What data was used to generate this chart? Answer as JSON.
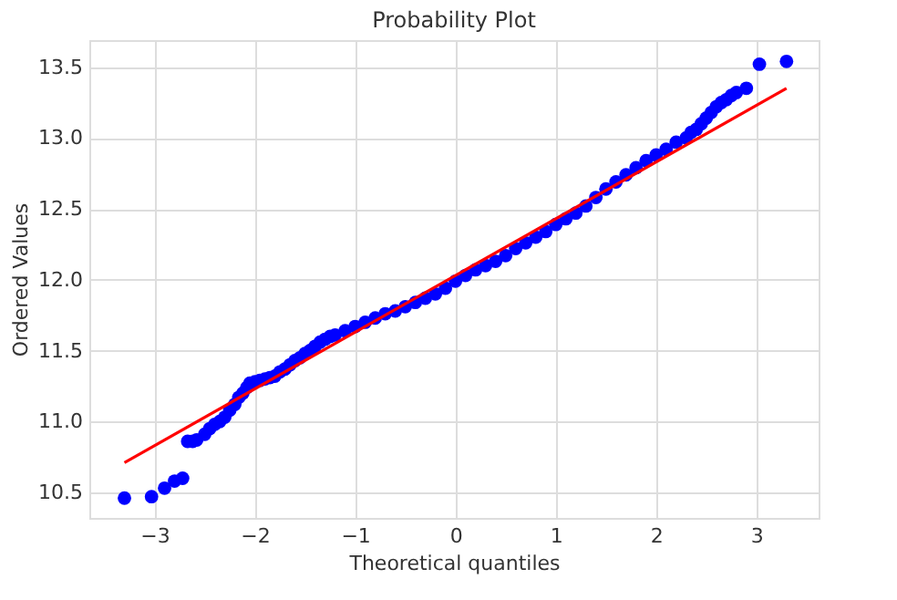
{
  "chart_data": {
    "type": "scatter",
    "title": "Probability Plot",
    "xlabel": "Theoretical quantiles",
    "ylabel": "Ordered Values",
    "xlim": [
      -3.65,
      3.62
    ],
    "ylim": [
      10.32,
      13.69
    ],
    "xticks": [
      {
        "value": -3,
        "label": "−3"
      },
      {
        "value": -2,
        "label": "−2"
      },
      {
        "value": -1,
        "label": "−1"
      },
      0,
      1,
      2,
      3
    ],
    "yticks": [
      10.5,
      {
        "value": 11,
        "label": "11.0"
      },
      11.5,
      {
        "value": 12,
        "label": "12.0"
      },
      12.5,
      {
        "value": 13,
        "label": "13.0"
      },
      13.5
    ],
    "grid": true,
    "series": [
      {
        "color": "#0000ff",
        "marker": "circle",
        "x": [
          -3.3,
          -3.03,
          -2.9,
          -2.8,
          -2.72,
          -2.67,
          -2.62,
          -2.58,
          -2.5,
          -2.45,
          -2.4,
          -2.35,
          -2.3,
          -2.25,
          -2.2,
          -2.16,
          -2.12,
          -2.08,
          -2.05,
          -2.0,
          -1.95,
          -1.9,
          -1.85,
          -1.8,
          -1.75,
          -1.7,
          -1.65,
          -1.6,
          -1.55,
          -1.5,
          -1.45,
          -1.4,
          -1.35,
          -1.3,
          -1.25,
          -1.2,
          -1.1,
          -1.0,
          -0.9,
          -0.8,
          -0.7,
          -0.6,
          -0.5,
          -0.4,
          -0.3,
          -0.2,
          -0.1,
          0,
          0.1,
          0.2,
          0.3,
          0.4,
          0.5,
          0.6,
          0.7,
          0.8,
          0.9,
          1.0,
          1.1,
          1.2,
          1.3,
          1.4,
          1.5,
          1.6,
          1.7,
          1.8,
          1.9,
          2.0,
          2.1,
          2.2,
          2.3,
          2.35,
          2.4,
          2.45,
          2.5,
          2.55,
          2.6,
          2.65,
          2.7,
          2.75,
          2.8,
          2.9,
          3.03,
          3.3
        ],
        "values": [
          10.46,
          10.47,
          10.53,
          10.58,
          10.6,
          10.86,
          10.86,
          10.87,
          10.91,
          10.95,
          10.98,
          11.0,
          11.03,
          11.08,
          11.12,
          11.17,
          11.2,
          11.24,
          11.27,
          11.28,
          11.29,
          11.3,
          11.31,
          11.32,
          11.35,
          11.37,
          11.4,
          11.43,
          11.45,
          11.48,
          11.5,
          11.53,
          11.56,
          11.58,
          11.6,
          11.61,
          11.64,
          11.67,
          11.7,
          11.73,
          11.76,
          11.78,
          11.81,
          11.84,
          11.87,
          11.9,
          11.94,
          11.99,
          12.03,
          12.07,
          12.1,
          12.13,
          12.17,
          12.22,
          12.26,
          12.3,
          12.34,
          12.39,
          12.43,
          12.47,
          12.52,
          12.58,
          12.64,
          12.69,
          12.74,
          12.79,
          12.84,
          12.88,
          12.92,
          12.97,
          13.0,
          13.04,
          13.06,
          13.1,
          13.14,
          13.18,
          13.22,
          13.25,
          13.27,
          13.3,
          13.32,
          13.35,
          13.52,
          13.54
        ]
      },
      {
        "type": "line",
        "color": "#ff0000",
        "line_style": "solid",
        "x": [
          -3.3,
          3.3
        ],
        "values": [
          10.71,
          13.35
        ]
      }
    ]
  }
}
